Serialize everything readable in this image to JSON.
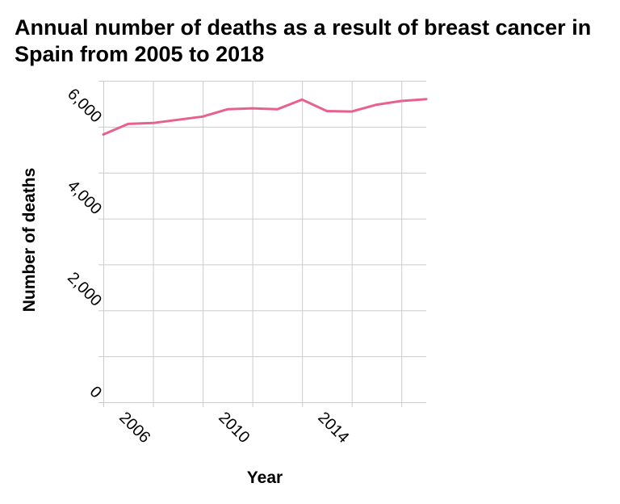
{
  "chart_data": {
    "type": "line",
    "title": "Annual number of deaths as a result of breast cancer in Spain from 2005 to 2018",
    "xlabel": "Year",
    "ylabel": "Number of deaths",
    "x": [
      2005,
      2006,
      2007,
      2008,
      2009,
      2010,
      2011,
      2012,
      2013,
      2014,
      2015,
      2016,
      2017,
      2018
    ],
    "series": [
      {
        "values": [
          5830,
          6060,
          6080,
          6150,
          6220,
          6380,
          6400,
          6380,
          6590,
          6340,
          6330,
          6480,
          6560,
          6600
        ],
        "color": "#e8618c"
      }
    ],
    "xlim": [
      2005,
      2018
    ],
    "ylim": [
      0,
      7000
    ],
    "x_ticks": [
      2006,
      2010,
      2014
    ],
    "x_tick_labels": [
      "2006",
      "2010",
      "2014"
    ],
    "y_ticks": [
      0,
      2000,
      4000,
      6000
    ],
    "y_tick_labels": [
      "0",
      "2,000",
      "4,000",
      "6,000"
    ],
    "grid": true,
    "grid_color": "#cccccc",
    "legend": "none"
  }
}
